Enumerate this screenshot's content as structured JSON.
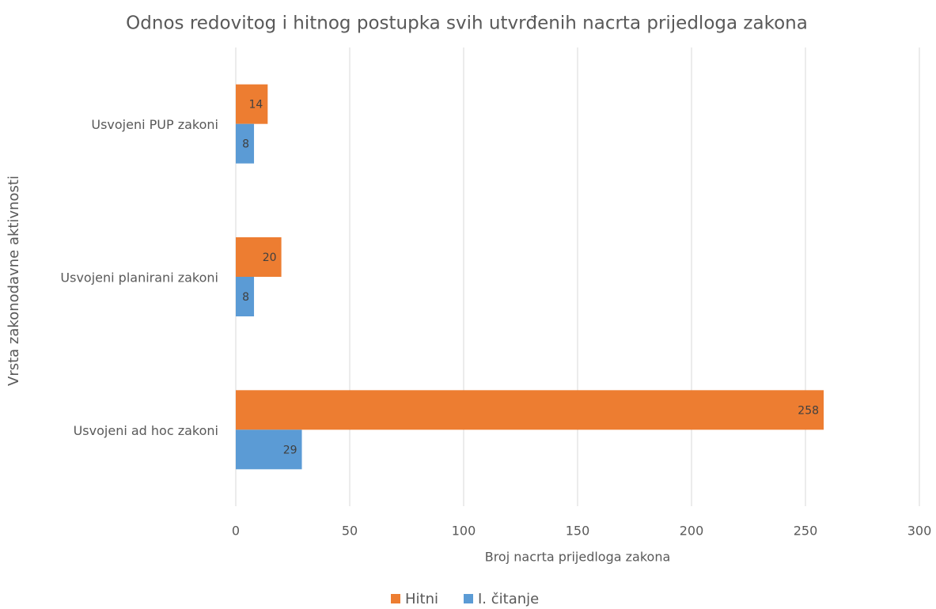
{
  "chart_data": {
    "type": "hbar",
    "title": "Odnos redovitog i hitnog postupka svih utvrđenih nacrta prijedloga zakona",
    "x_label": "Broj nacrta prijedloga zakona",
    "y_label": "Vrsta zakonodavne aktivnosti",
    "categories": [
      "Usvojeni PUP zakoni",
      "Usvojeni planirani zakoni",
      "Usvojeni ad hoc zakoni"
    ],
    "series": [
      {
        "name": "Hitni",
        "color": "#ed7d31",
        "values": [
          14,
          20,
          258
        ]
      },
      {
        "name": "I. čitanje",
        "color": "#5b9bd5",
        "values": [
          8,
          8,
          29
        ]
      }
    ],
    "xlim": [
      0,
      300
    ],
    "xticks": [
      0,
      50,
      100,
      150,
      200,
      250,
      300
    ],
    "grid": true,
    "legend": "bottom"
  }
}
